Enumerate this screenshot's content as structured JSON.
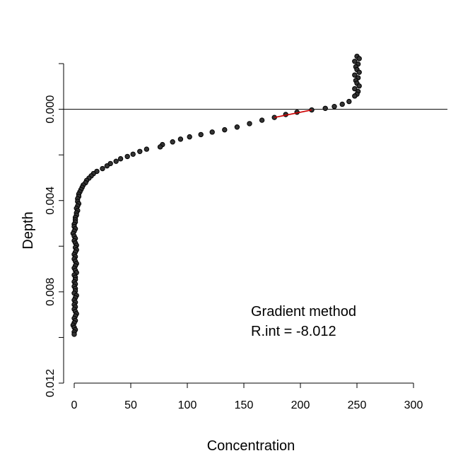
{
  "chart_data": {
    "type": "scatter",
    "xlabel": "Concentration",
    "ylabel": "Depth",
    "xlim": [
      0,
      300
    ],
    "ylim": [
      0.012,
      -0.002
    ],
    "y_reversed": true,
    "grid": false,
    "x_ticks": [
      0,
      50,
      100,
      150,
      200,
      250,
      300
    ],
    "x_tick_labels": [
      "0",
      "50",
      "100",
      "150",
      "200",
      "250",
      "300"
    ],
    "y_ticks": [
      0.0,
      0.004,
      0.008,
      0.012
    ],
    "y_tick_labels": [
      "0.000",
      "0.004",
      "0.008",
      "0.012"
    ],
    "y_minor_ticks": [
      -0.002,
      0.002,
      0.006,
      0.01
    ],
    "reference_line": {
      "orientation": "horizontal",
      "y": 0.0
    },
    "annotation": {
      "line1": "Gradient method",
      "line2": "R.int = -8.012"
    },
    "fit_line": {
      "color": "#cc0000",
      "points": [
        [
          177,
          0.00036
        ],
        [
          210,
          3e-05
        ]
      ]
    },
    "point_color": "#333333",
    "points": [
      [
        250,
        -0.00232
      ],
      [
        252,
        -0.00222
      ],
      [
        248,
        -0.0021
      ],
      [
        251,
        -0.00198
      ],
      [
        249,
        -0.00186
      ],
      [
        250,
        -0.00174
      ],
      [
        252,
        -0.00162
      ],
      [
        248,
        -0.0015
      ],
      [
        251,
        -0.00138
      ],
      [
        249,
        -0.00126
      ],
      [
        250,
        -0.00114
      ],
      [
        252,
        -0.00102
      ],
      [
        248,
        -0.0009
      ],
      [
        251,
        -0.00078
      ],
      [
        250,
        -0.00066
      ],
      [
        248,
        -0.00058
      ],
      [
        243,
        -0.00034
      ],
      [
        237,
        -0.00022
      ],
      [
        230,
        -0.00012
      ],
      [
        222,
        -4e-05
      ],
      [
        210,
        3e-05
      ],
      [
        197,
        0.00013
      ],
      [
        187,
        0.00023
      ],
      [
        177,
        0.00036
      ],
      [
        166,
        0.00048
      ],
      [
        155,
        0.00063
      ],
      [
        144,
        0.00078
      ],
      [
        133,
        0.0009
      ],
      [
        122,
        0.001
      ],
      [
        112,
        0.00111
      ],
      [
        102,
        0.00121
      ],
      [
        94,
        0.00131
      ],
      [
        87,
        0.00143
      ],
      [
        78,
        0.00155
      ],
      [
        76,
        0.00165
      ],
      [
        64,
        0.00175
      ],
      [
        58,
        0.00185
      ],
      [
        52,
        0.00197
      ],
      [
        47,
        0.00207
      ],
      [
        41,
        0.00217
      ],
      [
        37,
        0.00228
      ],
      [
        32,
        0.00238
      ],
      [
        29,
        0.00248
      ],
      [
        25,
        0.0026
      ],
      [
        20,
        0.00272
      ],
      [
        17,
        0.00282
      ],
      [
        15,
        0.00292
      ],
      [
        13,
        0.00302
      ],
      [
        11,
        0.00312
      ],
      [
        10,
        0.00322
      ],
      [
        8,
        0.00332
      ],
      [
        7,
        0.00342
      ],
      [
        6,
        0.00352
      ],
      [
        5,
        0.00362
      ],
      [
        4,
        0.00372
      ],
      [
        4,
        0.00382
      ],
      [
        3,
        0.00392
      ],
      [
        3,
        0.00404
      ],
      [
        4,
        0.00414
      ],
      [
        3,
        0.00424
      ],
      [
        2,
        0.00434
      ],
      [
        3,
        0.00444
      ],
      [
        2,
        0.00454
      ],
      [
        2,
        0.00464
      ],
      [
        1,
        0.00474
      ],
      [
        1,
        0.00484
      ],
      [
        1,
        0.00494
      ],
      [
        0,
        0.00504
      ],
      [
        0,
        0.00514
      ],
      [
        1,
        0.00524
      ],
      [
        0,
        0.00534
      ],
      [
        -1,
        0.00544
      ],
      [
        0,
        0.00556
      ],
      [
        1,
        0.00566
      ],
      [
        0,
        0.00576
      ],
      [
        1,
        0.00586
      ],
      [
        2,
        0.00596
      ],
      [
        1,
        0.00606
      ],
      [
        2,
        0.00616
      ],
      [
        1,
        0.00626
      ],
      [
        0,
        0.00636
      ],
      [
        1,
        0.00646
      ],
      [
        0,
        0.00656
      ],
      [
        1,
        0.00666
      ],
      [
        2,
        0.00676
      ],
      [
        1,
        0.00686
      ],
      [
        0,
        0.00696
      ],
      [
        1,
        0.00706
      ],
      [
        2,
        0.00716
      ],
      [
        0,
        0.00726
      ],
      [
        1,
        0.00736
      ],
      [
        1,
        0.00746
      ],
      [
        0,
        0.00756
      ],
      [
        1,
        0.00766
      ],
      [
        0,
        0.00776
      ],
      [
        1,
        0.00786
      ],
      [
        1,
        0.00796
      ],
      [
        0,
        0.00806
      ],
      [
        2,
        0.00816
      ],
      [
        1,
        0.00826
      ],
      [
        0,
        0.00836
      ],
      [
        1,
        0.00846
      ],
      [
        0,
        0.00856
      ],
      [
        1,
        0.00866
      ],
      [
        0,
        0.00876
      ],
      [
        1,
        0.00886
      ],
      [
        2,
        0.00896
      ],
      [
        1,
        0.00906
      ],
      [
        0,
        0.00916
      ],
      [
        1,
        0.00926
      ],
      [
        0,
        0.00936
      ],
      [
        -1,
        0.00946
      ],
      [
        0,
        0.00956
      ],
      [
        1,
        0.00966
      ],
      [
        0,
        0.00976
      ],
      [
        0,
        0.00986
      ]
    ]
  }
}
